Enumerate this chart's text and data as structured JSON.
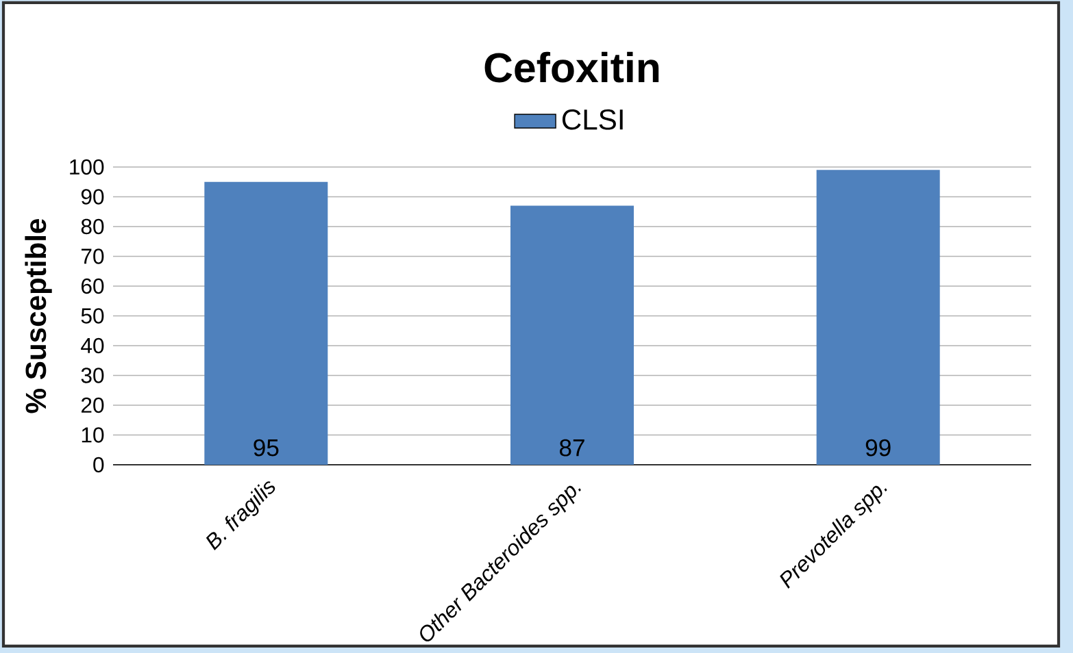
{
  "chart_data": {
    "type": "bar",
    "title": "Cefoxitin",
    "ylabel": "% Susceptible",
    "categories": [
      "B. fragilis",
      "Other Bacteroides spp.",
      "Prevotella spp."
    ],
    "series": [
      {
        "name": "CLSI",
        "color": "#4f81bd",
        "values": [
          95,
          87,
          99
        ]
      }
    ],
    "ylim": [
      0,
      100
    ],
    "yticks": [
      0,
      10,
      20,
      30,
      40,
      50,
      60,
      70,
      80,
      90,
      100
    ],
    "grid": "y",
    "legend": "top",
    "data_labels": true
  }
}
